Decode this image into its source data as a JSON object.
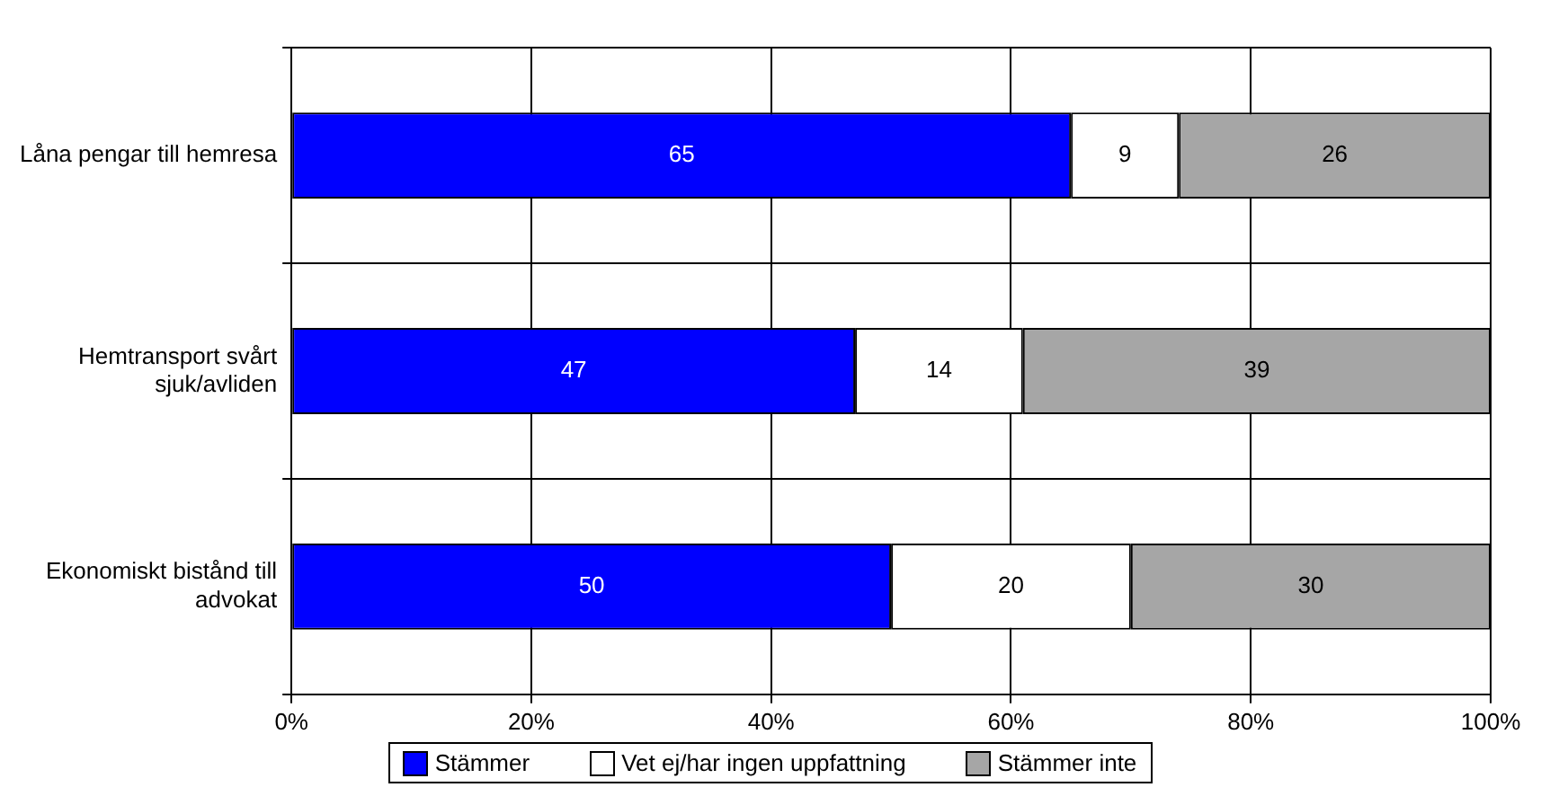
{
  "chart_data": {
    "type": "bar",
    "orientation": "horizontal",
    "stacked": true,
    "categories": [
      "Låna pengar till hemresa",
      "Hemtransport svårt sjuk/avliden",
      "Ekonomiskt bistånd till advokat"
    ],
    "series": [
      {
        "name": "Stämmer",
        "color": "#0000ff",
        "values": [
          65,
          47,
          50
        ]
      },
      {
        "name": "Vet ej/har ingen uppfattning",
        "color": "#ffffff",
        "values": [
          9,
          14,
          20
        ]
      },
      {
        "name": "Stämmer inte",
        "color": "#a6a6a6",
        "values": [
          26,
          39,
          30
        ]
      }
    ],
    "xlim": [
      0,
      100
    ],
    "xticks": [
      {
        "value": 0,
        "label": "0%"
      },
      {
        "value": 20,
        "label": "20%"
      },
      {
        "value": 40,
        "label": "40%"
      },
      {
        "value": 60,
        "label": "60%"
      },
      {
        "value": 80,
        "label": "80%"
      },
      {
        "value": 100,
        "label": "100%"
      }
    ],
    "grid": true,
    "legend": "bottom",
    "data_labels": true
  }
}
